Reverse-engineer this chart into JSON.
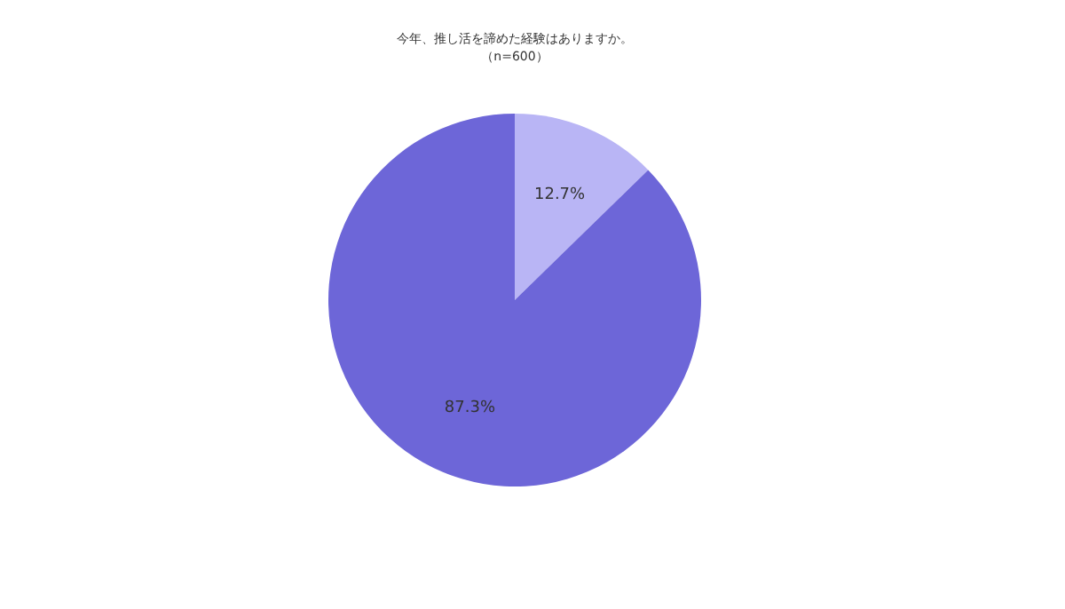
{
  "chart_data": {
    "type": "pie",
    "title": "今年、推し活を諦めた経験はありますか。",
    "subtitle": "（n=600）",
    "categories": [
      null,
      null
    ],
    "values": [
      12.7,
      87.3
    ],
    "colors": [
      "#b9b5f5",
      "#6d66d8"
    ],
    "value_labels": [
      "12.7%",
      "87.3%"
    ],
    "legend": false
  }
}
